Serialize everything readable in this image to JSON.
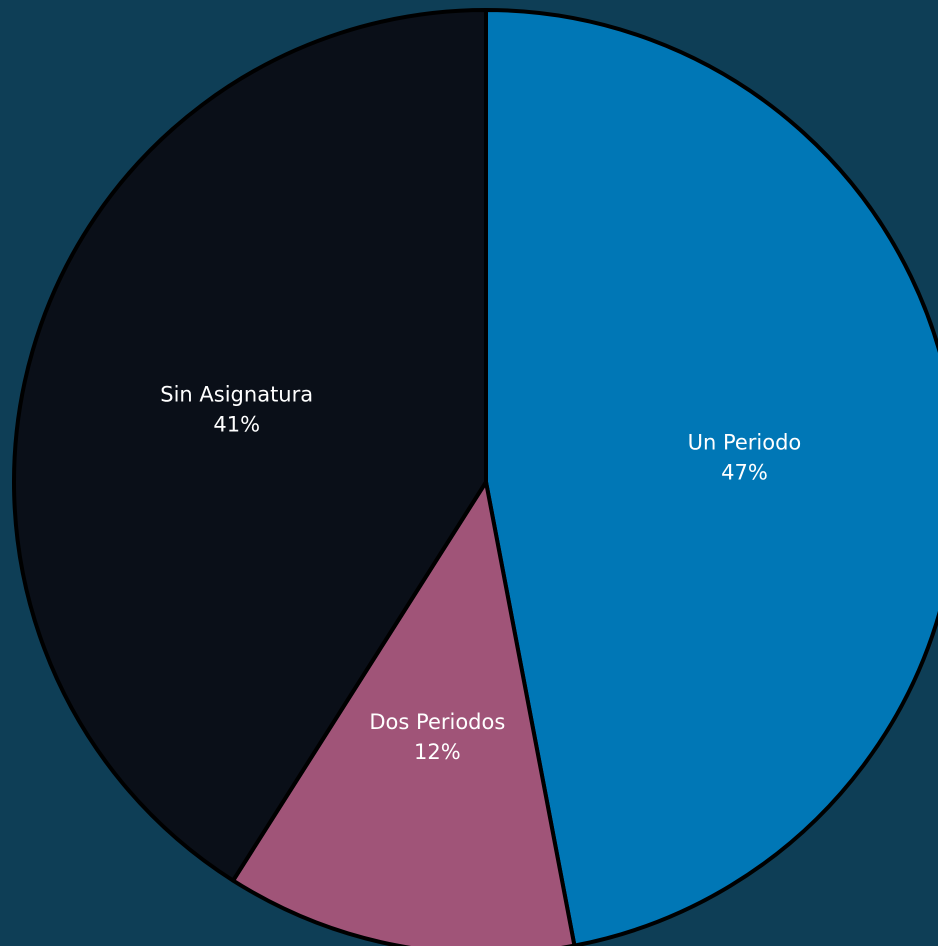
{
  "chart_data": {
    "type": "pie",
    "categories": [
      "Un Periodo",
      "Dos Periodos",
      "Sin Asignatura"
    ],
    "values": [
      47,
      12,
      41
    ],
    "value_labels": [
      "47%",
      "12%",
      "41%"
    ],
    "colors": [
      "#0077b6",
      "#a05478",
      "#0a0f18"
    ]
  }
}
